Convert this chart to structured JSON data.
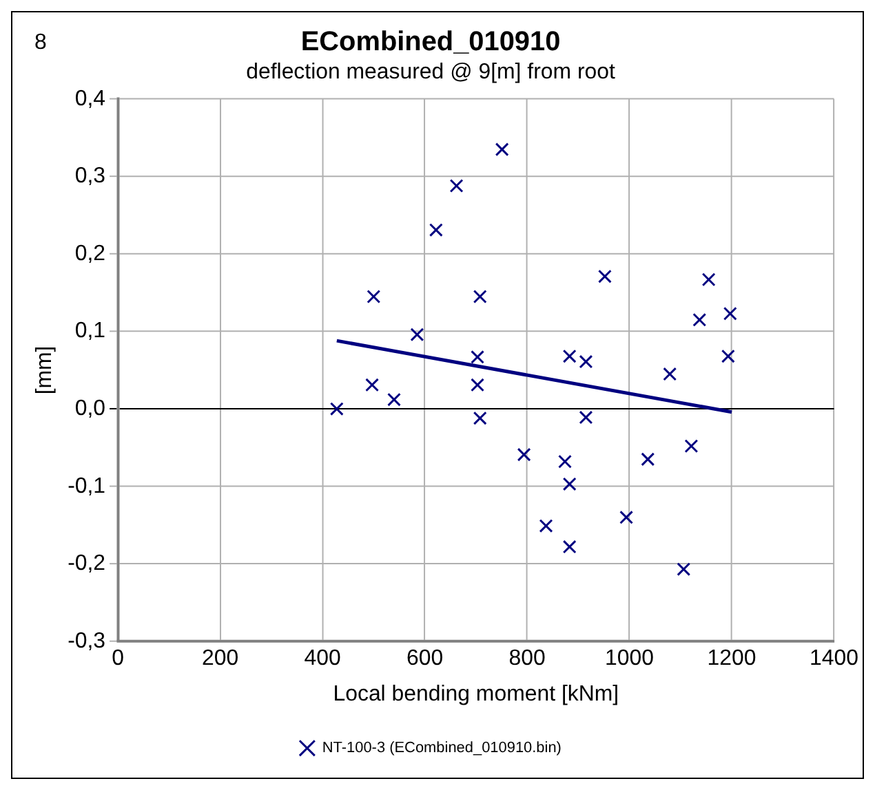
{
  "chart_data": {
    "type": "scatter",
    "title": "ECombined_010910",
    "subtitle": "deflection measured @ 9[m] from root",
    "xlabel": "Local bending moment [kNm]",
    "ylabel": "[mm]",
    "annotations": [
      "8"
    ],
    "xlim": [
      0,
      1400
    ],
    "xticks": [
      0,
      200,
      400,
      600,
      800,
      1000,
      1200,
      1400
    ],
    "ylim": [
      -0.3,
      0.4
    ],
    "yticks": [
      {
        "value": -0.3,
        "label": "-0,3"
      },
      {
        "value": -0.2,
        "label": "-0,2"
      },
      {
        "value": -0.1,
        "label": "-0,1"
      },
      {
        "value": 0,
        "label": "0,0"
      },
      {
        "value": 0.1,
        "label": "0,1"
      },
      {
        "value": 0.2,
        "label": "0,2"
      },
      {
        "value": 0.3,
        "label": "0,3"
      },
      {
        "value": 0.4,
        "label": "0,4"
      }
    ],
    "grid": true,
    "legend": "bottom",
    "marker": "cross",
    "series": [
      {
        "name": "NT-100-3 (ECombined_010910.bin)",
        "color": "#000080",
        "x": [
          428,
          500,
          497,
          540,
          585,
          622,
          662,
          708,
          703,
          703,
          708,
          751,
          794,
          837,
          883,
          874,
          883,
          883,
          915,
          915,
          952,
          994,
          1079,
          1036,
          1121,
          1106,
          1137,
          1155,
          1197,
          1193
        ],
        "values": [
          0.0,
          0.145,
          0.031,
          0.012,
          0.096,
          0.231,
          0.288,
          0.145,
          0.067,
          0.031,
          -0.012,
          0.335,
          -0.059,
          -0.151,
          0.068,
          -0.068,
          -0.097,
          -0.178,
          0.061,
          -0.011,
          0.171,
          -0.14,
          0.045,
          -0.065,
          -0.048,
          -0.207,
          0.115,
          0.167,
          0.123,
          0.068
        ]
      },
      {
        "type": "line",
        "color": "#000080",
        "x": [
          428,
          1200
        ],
        "values": [
          0.088,
          -0.004
        ],
        "marker": "none"
      }
    ]
  }
}
